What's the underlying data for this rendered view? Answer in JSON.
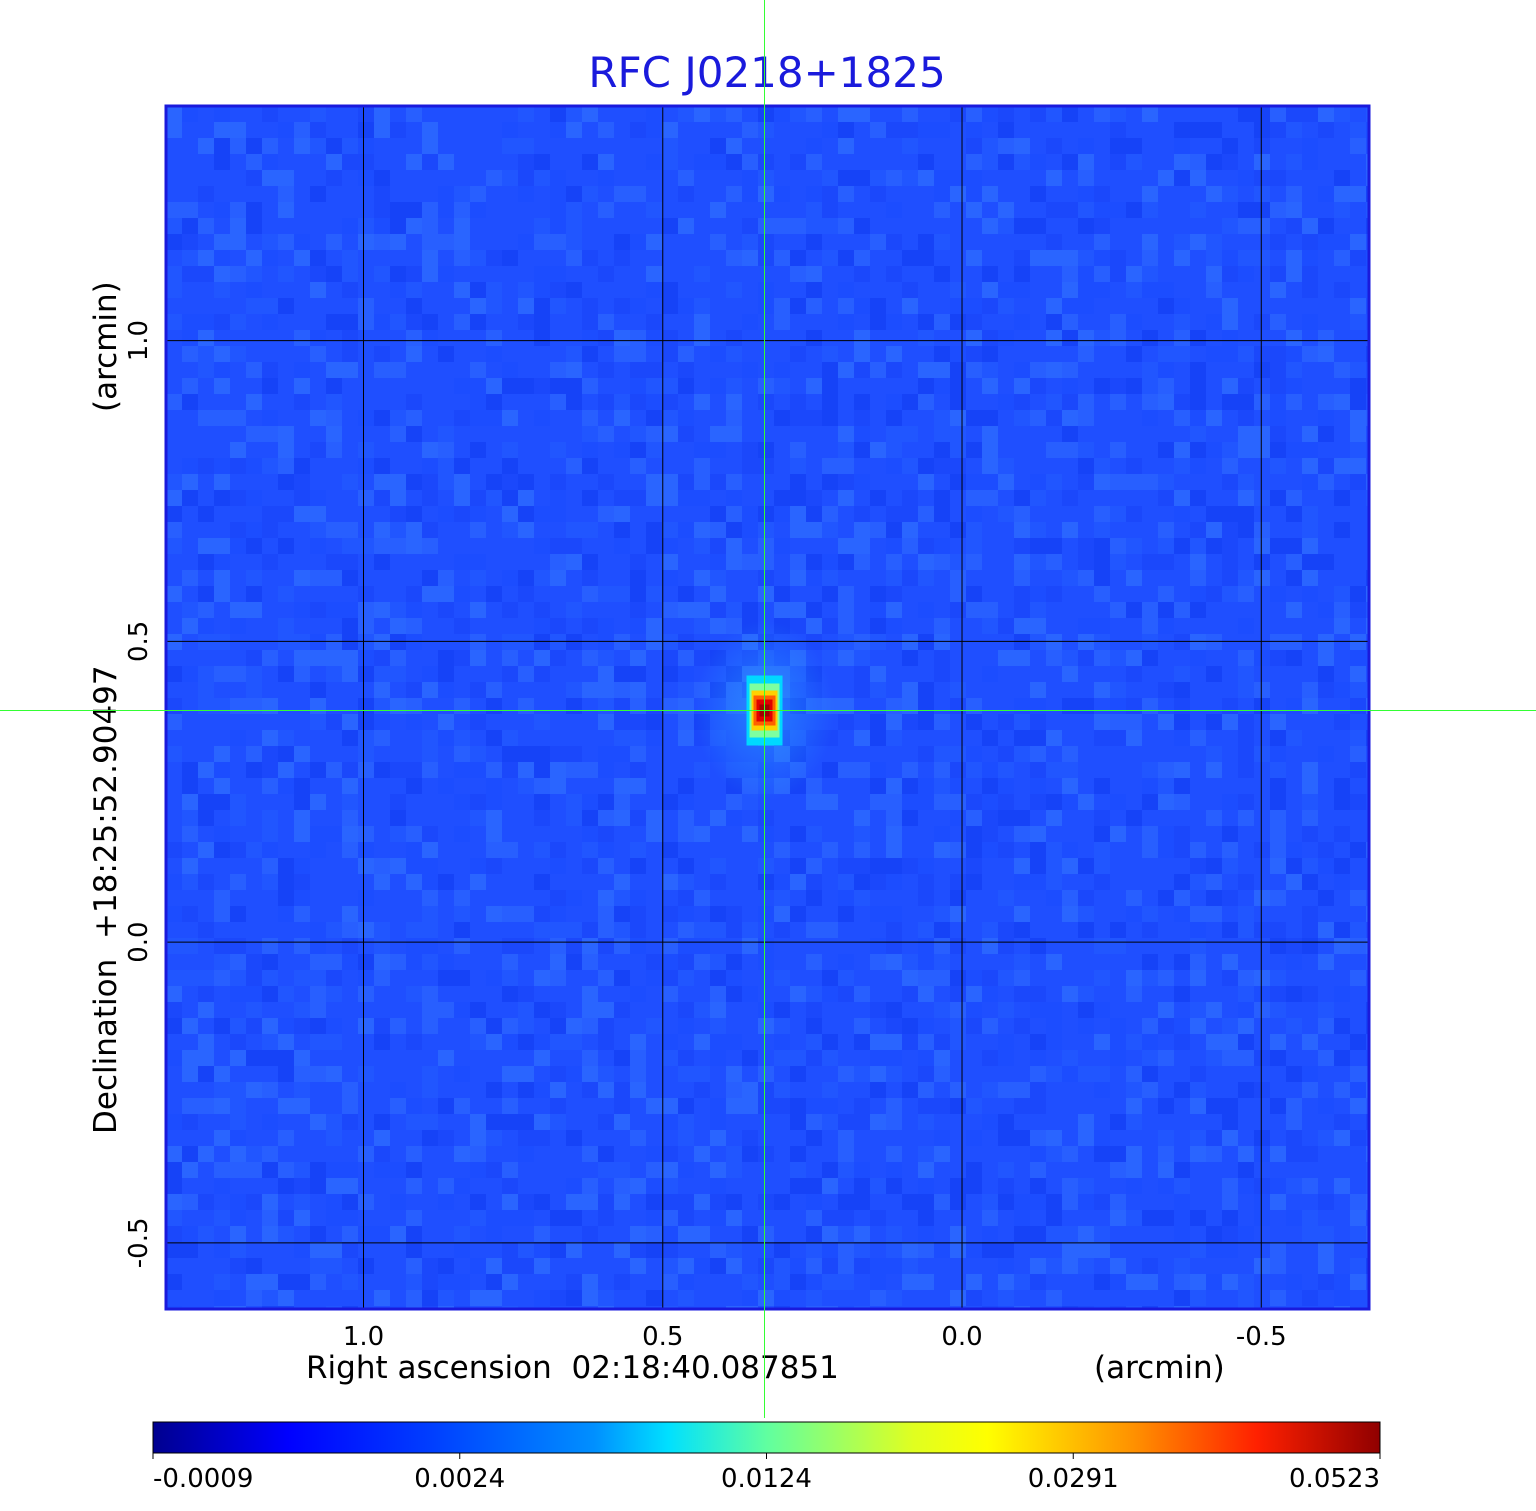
{
  "chart_data": {
    "type": "heatmap",
    "title": "RFC J0218+1825",
    "xlabel": "Right ascension  02:18:40.087851",
    "xunit": "(arcmin)",
    "ylabel": "Declination  +18:25:52.90497",
    "yunit": "(arcmin)",
    "xlim": [
      1.33,
      -0.68
    ],
    "ylim": [
      -0.61,
      1.39
    ],
    "x_ticks": [
      {
        "value": 1.0,
        "label": "1.0"
      },
      {
        "value": 0.5,
        "label": "0.5"
      },
      {
        "value": 0.0,
        "label": "0.0"
      },
      {
        "value": -0.5,
        "label": "-0.5"
      }
    ],
    "y_ticks": [
      {
        "value": 1.0,
        "label": "1.0"
      },
      {
        "value": 0.5,
        "label": "0.5"
      },
      {
        "value": 0.0,
        "label": "0.0"
      },
      {
        "value": -0.5,
        "label": "-0.5"
      }
    ],
    "grid": true,
    "crosshair": {
      "x": 0.33,
      "y": 0.385
    },
    "source_peak": {
      "x": 0.33,
      "y": 0.385,
      "value": 0.0523
    },
    "colorbar": {
      "colormap": "jet",
      "ticks": [
        {
          "value": -0.0009,
          "label": "-0.0009"
        },
        {
          "value": 0.0024,
          "label": "0.0024"
        },
        {
          "value": 0.0124,
          "label": "0.0124"
        },
        {
          "value": 0.0291,
          "label": "0.0291"
        },
        {
          "value": 0.0523,
          "label": "0.0523"
        }
      ]
    }
  },
  "colors": {
    "title": "#1a1adc",
    "grid": "#000000",
    "crosshair": "#33ff33",
    "frame": "#1a1adc"
  }
}
